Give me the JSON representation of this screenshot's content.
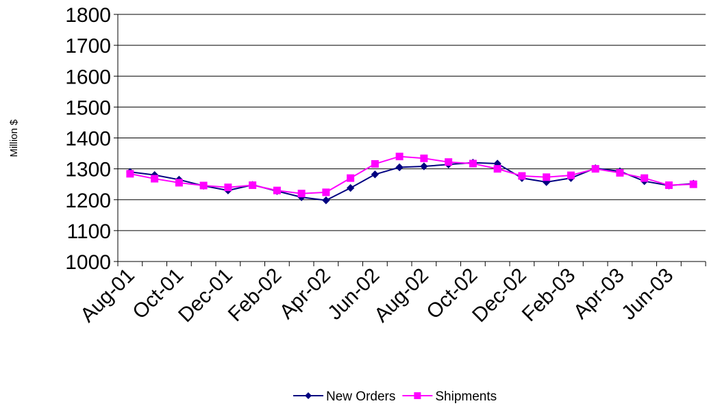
{
  "chart_data": {
    "type": "line",
    "title": "",
    "xlabel": "",
    "ylabel": "Million $",
    "ylim": [
      1000,
      1800
    ],
    "yticks": [
      1000,
      1100,
      1200,
      1300,
      1400,
      1500,
      1600,
      1700,
      1800
    ],
    "grid": true,
    "legend_position": "bottom",
    "x": [
      "Aug-01",
      "Sep-01",
      "Oct-01",
      "Nov-01",
      "Dec-01",
      "Jan-02",
      "Feb-02",
      "Mar-02",
      "Apr-02",
      "May-02",
      "Jun-02",
      "Jul-02",
      "Aug-02",
      "Sep-02",
      "Oct-02",
      "Nov-02",
      "Dec-02",
      "Jan-03",
      "Feb-03",
      "Mar-03",
      "Apr-03",
      "May-03",
      "Jun-03",
      "Jul-03"
    ],
    "x_tick_labels": [
      "Aug-01",
      "Oct-01",
      "Dec-01",
      "Feb-02",
      "Apr-02",
      "Jun-02",
      "Aug-02",
      "Oct-02",
      "Dec-02",
      "Feb-03",
      "Apr-03",
      "Jun-03"
    ],
    "series": [
      {
        "name": "New Orders",
        "color": "#000080",
        "marker": "diamond",
        "values": [
          1290,
          1280,
          1265,
          1245,
          1230,
          1248,
          1228,
          1208,
          1198,
          1238,
          1282,
          1305,
          1308,
          1314,
          1320,
          1317,
          1270,
          1257,
          1270,
          1302,
          1292,
          1260,
          1246,
          1252
        ]
      },
      {
        "name": "Shipments",
        "color": "#ff00ff",
        "marker": "square",
        "values": [
          1284,
          1268,
          1255,
          1246,
          1240,
          1247,
          1230,
          1220,
          1224,
          1270,
          1316,
          1340,
          1334,
          1322,
          1317,
          1300,
          1277,
          1273,
          1279,
          1300,
          1287,
          1270,
          1247,
          1250
        ]
      }
    ]
  }
}
